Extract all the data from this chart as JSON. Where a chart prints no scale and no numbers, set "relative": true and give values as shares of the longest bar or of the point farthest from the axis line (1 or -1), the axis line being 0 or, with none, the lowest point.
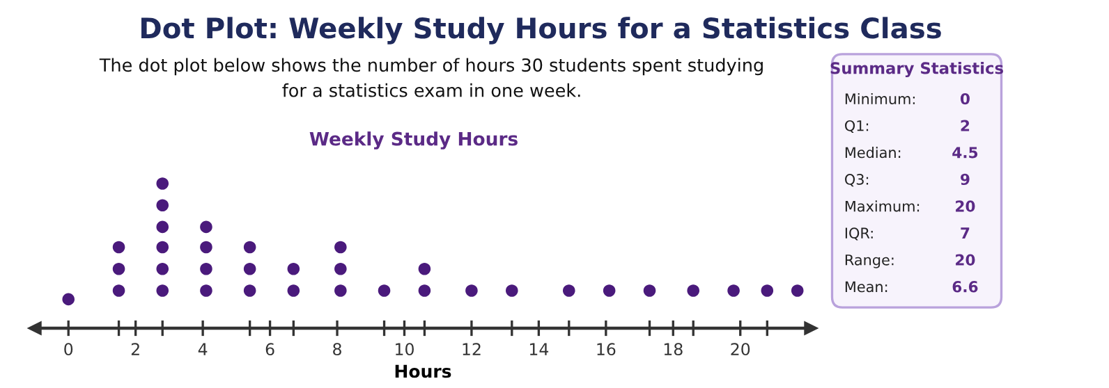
{
  "chart_data": [
    {
      "type": "scatter",
      "title": "Dot Plot: Weekly Study Hours for a Statistics Class",
      "subtitle": "The dot plot below shows the number of hours 30 students spent studying\nfor a statistics exam in one week.",
      "annotations": [
        "Weekly Study Hours"
      ],
      "xlabel": "Hours",
      "relative": true,
      "marker": "circle",
      "grid": false,
      "legend": false,
      "tick_labels": "x",
      "xlim": [
        -1,
        22.1
      ],
      "xticks": [
        0,
        {
          "value": 1.5,
          "label": null
        },
        2,
        {
          "value": 2.8,
          "label": null
        },
        4,
        {
          "value": 5.4,
          "label": null
        },
        6,
        {
          "value": 6.7,
          "label": null
        },
        8,
        {
          "value": 9.4,
          "label": null
        },
        10,
        {
          "value": 10.6,
          "label": null
        },
        12,
        {
          "value": 13.2,
          "label": null
        },
        14,
        {
          "value": 14.9,
          "label": null
        },
        16,
        {
          "value": 17.3,
          "label": null
        },
        18,
        {
          "value": 18.6,
          "label": null
        },
        20,
        {
          "value": 20.8,
          "label": null
        }
      ],
      "series": [
        {
          "color": "#4a1a7c",
          "x": [
            0,
            1.5,
            1.5,
            1.5,
            2.8,
            2.8,
            2.8,
            2.8,
            2.8,
            2.8,
            4.1,
            4.1,
            4.1,
            4.1,
            5.4,
            5.4,
            5.4,
            6.7,
            6.7,
            8.1,
            8.1,
            8.1,
            9.4,
            10.6,
            10.6,
            12,
            13.2,
            14.9,
            16.1,
            17.3,
            18.6,
            19.8,
            20.8,
            21.7
          ],
          "values": [
            0.2,
            0.26,
            0.41,
            0.56,
            0.26,
            0.41,
            0.56,
            0.7,
            0.85,
            1,
            0.26,
            0.41,
            0.56,
            0.7,
            0.26,
            0.41,
            0.56,
            0.26,
            0.41,
            0.26,
            0.41,
            0.56,
            0.26,
            0.26,
            0.41,
            0.26,
            0.26,
            0.26,
            0.26,
            0.26,
            0.26,
            0.26,
            0.26,
            0.26
          ]
        }
      ]
    },
    {
      "type": "other",
      "title": "Summary Statistics",
      "annotations": [
        "Minimum:",
        "0",
        "Q1:",
        "2",
        "Median:",
        "4.5",
        "Q3:",
        "9",
        "Maximum:",
        "20",
        "IQR:",
        "7",
        "Range:",
        "20",
        "Mean:",
        "6.6"
      ]
    }
  ]
}
